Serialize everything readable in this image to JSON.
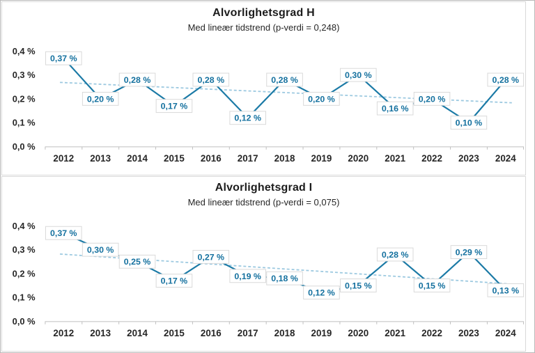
{
  "colors": {
    "series_line": "#1b7aa6",
    "trend_line": "#9cc9e0",
    "data_label_text": "#15719f",
    "data_label_border": "#d9d9d9",
    "data_label_bg": "#ffffff",
    "axis_line": "#bfbfbf",
    "tick_text": "#262626",
    "panel_border": "#d9d9d9"
  },
  "chart_data": [
    {
      "type": "line",
      "title": "Alvorlighetsgrad H",
      "subtitle": "Med lineær tidstrend (p-verdi = 0,248)",
      "p_value": "0,248",
      "categories": [
        "2012",
        "2013",
        "2014",
        "2015",
        "2016",
        "2017",
        "2018",
        "2019",
        "2020",
        "2021",
        "2022",
        "2023",
        "2024"
      ],
      "values": [
        0.37,
        0.2,
        0.28,
        0.17,
        0.28,
        0.12,
        0.28,
        0.2,
        0.3,
        0.16,
        0.2,
        0.1,
        0.28
      ],
      "data_labels": [
        "0,37 %",
        "0,20 %",
        "0,28 %",
        "0,17 %",
        "0,28 %",
        "0,12 %",
        "0,28 %",
        "0,20 %",
        "0,30 %",
        "0,16 %",
        "0,20 %",
        "0,10 %",
        "0,28 %"
      ],
      "ytick_labels": [
        "0,0 %",
        "0,1 %",
        "0,2 %",
        "0,3 %",
        "0,4 %"
      ],
      "ylim": [
        0,
        0.4
      ],
      "ylabel": "",
      "xlabel": "",
      "trendline": "linear-dashed",
      "legend": "none",
      "grid": "off"
    },
    {
      "type": "line",
      "title": "Alvorlighetsgrad I",
      "subtitle": "Med lineær tidstrend (p-verdi = 0,075)",
      "p_value": "0,075",
      "categories": [
        "2012",
        "2013",
        "2014",
        "2015",
        "2016",
        "2017",
        "2018",
        "2019",
        "2020",
        "2021",
        "2022",
        "2023",
        "2024"
      ],
      "values": [
        0.37,
        0.3,
        0.25,
        0.17,
        0.27,
        0.19,
        0.18,
        0.12,
        0.15,
        0.28,
        0.15,
        0.29,
        0.13
      ],
      "data_labels": [
        "0,37 %",
        "0,30 %",
        "0,25 %",
        "0,17 %",
        "0,27 %",
        "0,19 %",
        "0,18 %",
        "0,12 %",
        "0,15 %",
        "0,28 %",
        "0,15 %",
        "0,29 %",
        "0,13 %"
      ],
      "ytick_labels": [
        "0,0 %",
        "0,1 %",
        "0,2 %",
        "0,3 %",
        "0,4 %"
      ],
      "ylim": [
        0,
        0.4
      ],
      "ylabel": "",
      "xlabel": "",
      "trendline": "linear-dashed",
      "legend": "none",
      "grid": "off"
    }
  ]
}
